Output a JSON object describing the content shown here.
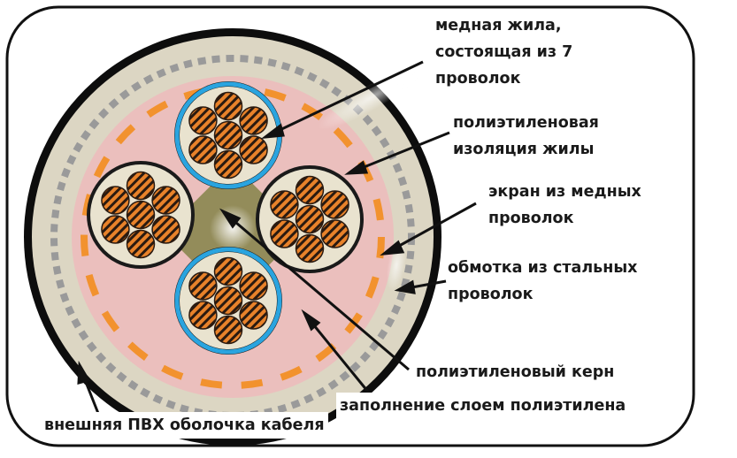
{
  "labels": {
    "copper_core": [
      "медная жила,",
      "состоящая из 7",
      "проволок"
    ],
    "pe_insulation": [
      "полиэтиленовая",
      "изоляция жилы"
    ],
    "copper_screen": [
      "экран из медных",
      "проволок"
    ],
    "steel_wrap": [
      "обмотка из стальных",
      "проволок"
    ],
    "pe_core": "полиэтиленовый керн",
    "pe_fill": "заполнение слоем полиэтилена",
    "pvc_sheath": "внешняя ПВХ оболочка кабеля"
  },
  "colors": {
    "outer_sheath": "#0d0d0d",
    "armor_ring": "#dcd6c3",
    "steel_dash": "#9a9a9a",
    "filler": "#ebbfbd",
    "screen_dash": "#f2922e",
    "pe_core": "#938c5a",
    "insulation_ring": "#1a1a1a",
    "blue_insulation": "#2aa4df",
    "core_fill": "#e9e3cf",
    "copper_wire": "#e8822a",
    "wire_stripe": "#2a1a10",
    "frame": "#111111"
  }
}
